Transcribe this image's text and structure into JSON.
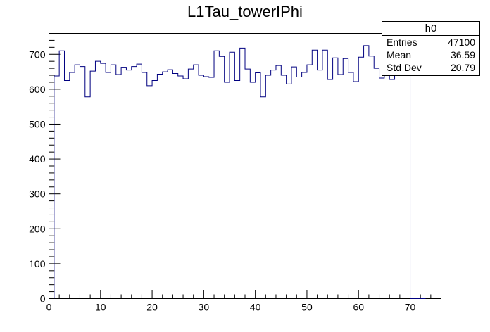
{
  "chart_data": {
    "type": "histogram",
    "title": "L1Tau_towerIPhi",
    "xlabel": "",
    "ylabel": "",
    "xlim": [
      0,
      76
    ],
    "ylim": [
      0,
      760
    ],
    "xticks": [
      0,
      10,
      20,
      30,
      40,
      50,
      60,
      70
    ],
    "yticks": [
      0,
      100,
      200,
      300,
      400,
      500,
      600,
      700
    ],
    "grid": false,
    "line_color": "#000080",
    "bin_edges_start": 1,
    "bin_width": 1,
    "values": [
      638,
      710,
      625,
      648,
      670,
      665,
      578,
      652,
      680,
      674,
      648,
      670,
      642,
      663,
      655,
      665,
      672,
      648,
      610,
      625,
      643,
      650,
      656,
      645,
      638,
      630,
      658,
      670,
      640,
      636,
      634,
      710,
      694,
      620,
      706,
      625,
      718,
      658,
      620,
      647,
      578,
      640,
      655,
      668,
      640,
      615,
      664,
      635,
      648,
      670,
      712,
      655,
      712,
      628,
      690,
      642,
      688,
      648,
      622,
      692,
      725,
      695,
      660,
      632,
      680,
      628,
      650,
      680,
      690,
      0,
      0,
      0
    ]
  },
  "stats": {
    "name": "h0",
    "rows": [
      {
        "label": "Entries",
        "value": "47100"
      },
      {
        "label": "Mean",
        "value": "36.59"
      },
      {
        "label": "Std Dev",
        "value": "20.79"
      }
    ]
  }
}
